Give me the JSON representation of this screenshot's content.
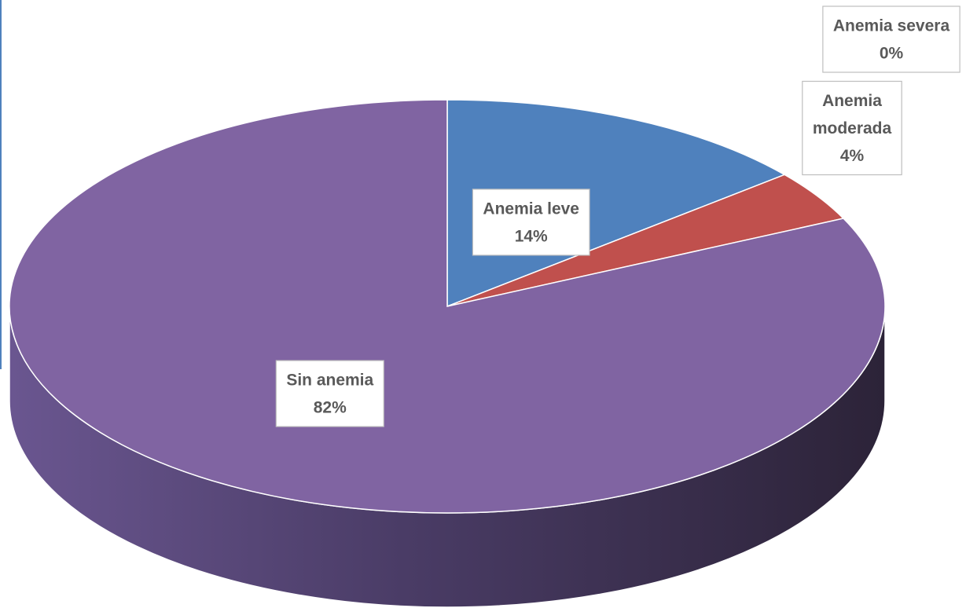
{
  "chart_data": {
    "type": "pie",
    "title": "",
    "categories": [
      "Anemia leve",
      "Anemia moderada",
      "Anemia severa",
      "Sin anemia"
    ],
    "values": [
      14,
      4,
      0,
      82
    ],
    "unit": "%",
    "labels": [
      {
        "lines": [
          "Anemia leve",
          "14%"
        ]
      },
      {
        "lines": [
          "Anemia",
          "moderada",
          "4%"
        ]
      },
      {
        "lines": [
          "Anemia severa",
          "0%"
        ]
      },
      {
        "lines": [
          "Sin anemia",
          "82%"
        ]
      }
    ],
    "colors": [
      "#4f81bd",
      "#c0504d",
      "#9bbb59",
      "#8064a2"
    ],
    "style": "3d-pie",
    "legend": "none"
  }
}
